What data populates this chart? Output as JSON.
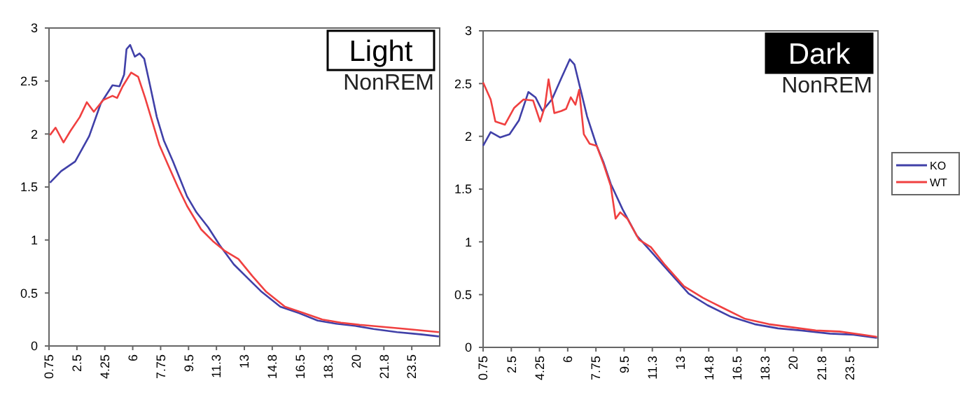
{
  "chart_data": [
    {
      "type": "line",
      "title": "Light",
      "subtitle": "NonREM",
      "xlim": [
        0.75,
        25.25
      ],
      "ylim": [
        0,
        3
      ],
      "xticks": [
        0.75,
        2.5,
        4.25,
        6,
        7.75,
        9.5,
        {
          "value": 11.25,
          "label": "11.3"
        },
        13,
        {
          "value": 14.75,
          "label": "14.8"
        },
        16.5,
        {
          "value": 18.25,
          "label": "18.3"
        },
        20,
        {
          "value": 21.75,
          "label": "21.8"
        },
        23.5
      ],
      "yticks": [
        0,
        0.5,
        1,
        1.5,
        2,
        2.5,
        3
      ],
      "grid": false,
      "legend": false,
      "series": [
        {
          "color": "#4040a8",
          "x": [
            0.81,
            1.51,
            2.39,
            3.27,
            4.0,
            4.73,
            5.17,
            5.46,
            5.61,
            5.84,
            6.13,
            6.43,
            6.72,
            7.07,
            7.51,
            7.95,
            8.53,
            9.41,
            10.0,
            10.73,
            11.46,
            12.34,
            13.21,
            14.09,
            15.26,
            16.43,
            17.6,
            18.77,
            19.94,
            21.1,
            22.58,
            24.04,
            25.2
          ],
          "values": [
            1.54,
            1.65,
            1.74,
            1.98,
            2.29,
            2.46,
            2.45,
            2.56,
            2.8,
            2.84,
            2.73,
            2.76,
            2.71,
            2.47,
            2.16,
            1.94,
            1.74,
            1.41,
            1.26,
            1.12,
            0.95,
            0.77,
            0.64,
            0.51,
            0.37,
            0.31,
            0.24,
            0.21,
            0.19,
            0.16,
            0.13,
            0.11,
            0.09
          ]
        },
        {
          "color": "#f04040",
          "x": [
            0.81,
            1.16,
            1.66,
            2.1,
            2.68,
            3.12,
            3.56,
            4.15,
            4.73,
            5.02,
            5.37,
            5.9,
            6.34,
            6.78,
            7.22,
            7.66,
            8.24,
            8.83,
            9.41,
            10.29,
            11.02,
            11.75,
            12.63,
            13.5,
            14.38,
            15.55,
            16.72,
            17.89,
            19.06,
            20.23,
            21.7,
            23.16,
            25.2
          ],
          "values": [
            1.99,
            2.06,
            1.92,
            2.03,
            2.16,
            2.3,
            2.21,
            2.32,
            2.36,
            2.34,
            2.45,
            2.58,
            2.54,
            2.34,
            2.12,
            1.9,
            1.7,
            1.5,
            1.32,
            1.1,
            0.99,
            0.9,
            0.82,
            0.66,
            0.51,
            0.37,
            0.31,
            0.25,
            0.22,
            0.2,
            0.18,
            0.16,
            0.13
          ]
        }
      ]
    },
    {
      "type": "line",
      "title": "Dark",
      "subtitle": "NonREM",
      "xlim": [
        0.75,
        25.25
      ],
      "ylim": [
        0,
        3
      ],
      "xticks": [
        0.75,
        2.5,
        4.25,
        6,
        7.75,
        9.5,
        {
          "value": 11.25,
          "label": "11.3"
        },
        13,
        {
          "value": 14.75,
          "label": "14.8"
        },
        16.5,
        {
          "value": 18.25,
          "label": "18.3"
        },
        20,
        {
          "value": 21.75,
          "label": "21.8"
        },
        23.5
      ],
      "yticks": [
        0,
        0.5,
        1,
        1.5,
        2,
        2.5,
        3
      ],
      "grid": false,
      "legend": "right",
      "series": [
        {
          "name": "KO",
          "color": "#4040a8",
          "x": [
            0.75,
            1.22,
            1.8,
            2.39,
            2.97,
            3.56,
            4.0,
            4.43,
            5.02,
            5.6,
            6.13,
            6.42,
            6.77,
            7.2,
            7.8,
            8.23,
            8.67,
            9.4,
            10.28,
            11.16,
            12.33,
            13.5,
            14.67,
            16.13,
            17.59,
            19.05,
            20.5,
            22.27,
            23.73,
            25.19
          ],
          "values": [
            1.91,
            2.04,
            1.99,
            2.02,
            2.15,
            2.42,
            2.37,
            2.24,
            2.35,
            2.55,
            2.73,
            2.68,
            2.46,
            2.19,
            1.91,
            1.75,
            1.55,
            1.31,
            1.06,
            0.91,
            0.71,
            0.51,
            0.4,
            0.29,
            0.22,
            0.18,
            0.16,
            0.13,
            0.12,
            0.09
          ]
        },
        {
          "name": "WT",
          "color": "#f04040",
          "x": [
            0.75,
            1.22,
            1.51,
            2.1,
            2.68,
            3.26,
            3.85,
            4.29,
            4.58,
            4.81,
            5.17,
            5.6,
            5.9,
            6.19,
            6.48,
            6.71,
            7.0,
            7.36,
            7.8,
            8.24,
            8.67,
            8.97,
            9.26,
            9.7,
            10.43,
            11.16,
            12.04,
            13.21,
            14.38,
            15.55,
            17.01,
            18.47,
            19.93,
            21.39,
            22.86,
            24.32,
            25.19
          ],
          "values": [
            2.51,
            2.35,
            2.14,
            2.11,
            2.27,
            2.35,
            2.34,
            2.14,
            2.28,
            2.54,
            2.22,
            2.24,
            2.26,
            2.37,
            2.3,
            2.44,
            2.02,
            1.93,
            1.91,
            1.73,
            1.53,
            1.22,
            1.28,
            1.22,
            1.02,
            0.95,
            0.78,
            0.58,
            0.47,
            0.38,
            0.27,
            0.22,
            0.19,
            0.16,
            0.15,
            0.12,
            0.1
          ]
        }
      ]
    }
  ]
}
